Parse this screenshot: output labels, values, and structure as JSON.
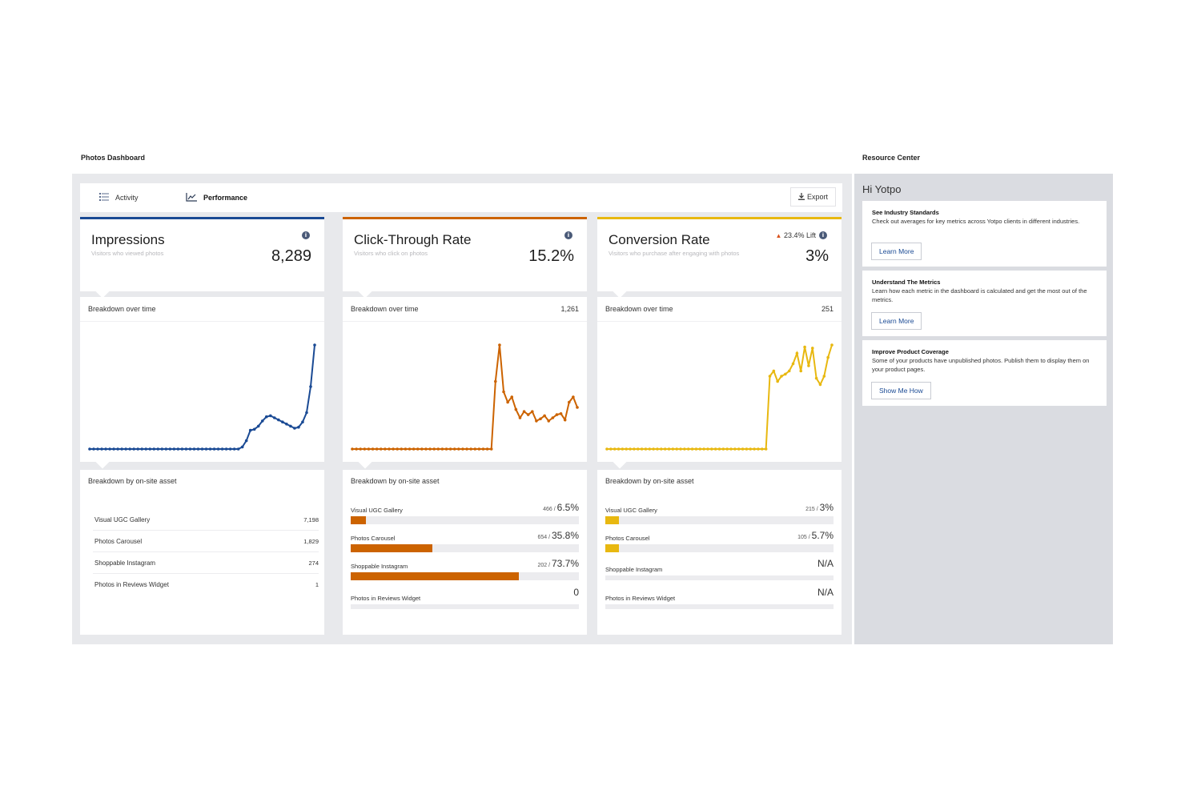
{
  "header": {
    "dashboard_title": "Photos Dashboard",
    "resource_title": "Resource Center"
  },
  "tabs": [
    {
      "label": "Activity",
      "icon": "list-icon"
    },
    {
      "label": "Performance",
      "icon": "line-chart-icon",
      "active": true
    }
  ],
  "export_label": "Export",
  "metrics": [
    {
      "title": "Impressions",
      "subtitle": "Visitors who viewed photos",
      "value": "8,289",
      "lift": "",
      "color": "#1a4a94",
      "chart_title": "Breakdown over time",
      "chart_value": "",
      "chart_series": [
        0,
        0,
        0,
        0,
        0,
        0,
        0,
        0,
        0,
        0,
        0,
        0,
        0,
        0,
        0,
        0,
        0,
        0,
        0,
        0,
        0,
        0,
        0,
        0,
        0,
        0,
        0,
        0,
        0,
        0,
        0,
        0,
        0,
        0,
        0,
        0,
        0,
        0,
        0.02,
        0.08,
        0.18,
        0.19,
        0.22,
        0.27,
        0.31,
        0.32,
        0.3,
        0.28,
        0.26,
        0.24,
        0.22,
        0.2,
        0.21,
        0.26,
        0.35,
        0.6,
        1.0
      ],
      "asset_title": "Breakdown by on-site asset",
      "assets": [
        {
          "label": "Visual UGC Gallery",
          "value": "7,198"
        },
        {
          "label": "Photos Carousel",
          "value": "1,829"
        },
        {
          "label": "Shoppable Instagram",
          "value": "274"
        },
        {
          "label": "Photos in Reviews Widget",
          "value": "1"
        }
      ]
    },
    {
      "title": "Click-Through Rate",
      "subtitle": "Visitors who click on photos",
      "value": "15.2%",
      "lift": "",
      "color": "#cc6300",
      "chart_title": "Breakdown over time",
      "chart_value": "1,261",
      "chart_series": [
        0,
        0,
        0,
        0,
        0,
        0,
        0,
        0,
        0,
        0,
        0,
        0,
        0,
        0,
        0,
        0,
        0,
        0,
        0,
        0,
        0,
        0,
        0,
        0,
        0,
        0,
        0,
        0,
        0,
        0,
        0,
        0,
        0,
        0,
        0,
        0.65,
        1.0,
        0.55,
        0.45,
        0.5,
        0.38,
        0.3,
        0.36,
        0.33,
        0.36,
        0.27,
        0.29,
        0.32,
        0.27,
        0.3,
        0.33,
        0.34,
        0.28,
        0.45,
        0.5,
        0.4
      ],
      "asset_title": "Breakdown by on-site asset",
      "assets": [
        {
          "label": "Visual UGC Gallery",
          "count": "466",
          "pct": "6.5%",
          "fraction": 0.065
        },
        {
          "label": "Photos Carousel",
          "count": "654",
          "pct": "35.8%",
          "fraction": 0.358
        },
        {
          "label": "Shoppable Instagram",
          "count": "202",
          "pct": "73.7%",
          "fraction": 0.737
        },
        {
          "label": "Photos in Reviews Widget",
          "count": "",
          "pct": "0",
          "fraction": 0
        }
      ]
    },
    {
      "title": "Conversion Rate",
      "subtitle": "Visitors who purchase after engaging with photos",
      "value": "3%",
      "lift": "23.4% Lift",
      "color": "#e8b810",
      "chart_title": "Breakdown over time",
      "chart_value": "251",
      "chart_series": [
        0,
        0,
        0,
        0,
        0,
        0,
        0,
        0,
        0,
        0,
        0,
        0,
        0,
        0,
        0,
        0,
        0,
        0,
        0,
        0,
        0,
        0,
        0,
        0,
        0,
        0,
        0,
        0,
        0,
        0,
        0,
        0,
        0,
        0,
        0,
        0,
        0,
        0,
        0,
        0,
        0,
        0,
        0.7,
        0.75,
        0.65,
        0.7,
        0.72,
        0.75,
        0.82,
        0.92,
        0.75,
        0.98,
        0.8,
        0.97,
        0.68,
        0.62,
        0.7,
        0.88,
        1.0
      ],
      "asset_title": "Breakdown by on-site asset",
      "assets": [
        {
          "label": "Visual UGC Gallery",
          "count": "215",
          "pct": "3%",
          "fraction": 0.03
        },
        {
          "label": "Photos Carousel",
          "count": "105",
          "pct": "5.7%",
          "fraction": 0.057
        },
        {
          "label": "Shoppable Instagram",
          "count": "",
          "pct": "N/A",
          "fraction": 0
        },
        {
          "label": "Photos in Reviews Widget",
          "count": "",
          "pct": "N/A",
          "fraction": 0
        }
      ]
    }
  ],
  "resource": {
    "greeting": "Hi Yotpo",
    "cards": [
      {
        "title": "See Industry Standards",
        "text": "Check out averages for key metrics across Yotpo clients in different industries.",
        "button": "Learn More"
      },
      {
        "title": "Understand The Metrics",
        "text": "Learn how each metric in the dashboard is calculated and get the most out of the metrics.",
        "button": "Learn More"
      },
      {
        "title": "Improve Product Coverage",
        "text": "Some of your products have unpublished photos. Publish them to display them on your product pages.",
        "button": "Show Me How"
      }
    ]
  }
}
